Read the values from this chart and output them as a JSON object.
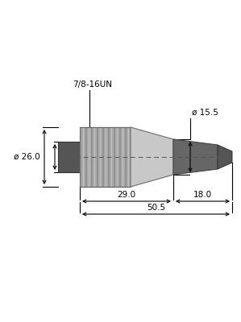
{
  "bg_color": "#ffffff",
  "label_7816un": "7/8-16UN",
  "label_d155": "ø 15.5",
  "label_d260": "ø 26.0",
  "label_29": "29.0",
  "label_18": "18.0",
  "label_505": "50.5",
  "nut_color": "#aaaaaa",
  "nut_edge_color": "#666666",
  "body_color": "#c8c8c8",
  "body_edge_color": "#777777",
  "back_color": "#555555",
  "back_edge_color": "#333333",
  "cable_color": "#666666",
  "cable_edge_color": "#444444",
  "rib_dark": "#888888",
  "rib_light": "#cccccc",
  "dim_color": "#000000",
  "text_color": "#000000",
  "dash_color": "#555555",
  "n_ribs": 18,
  "font_size": 7.5
}
